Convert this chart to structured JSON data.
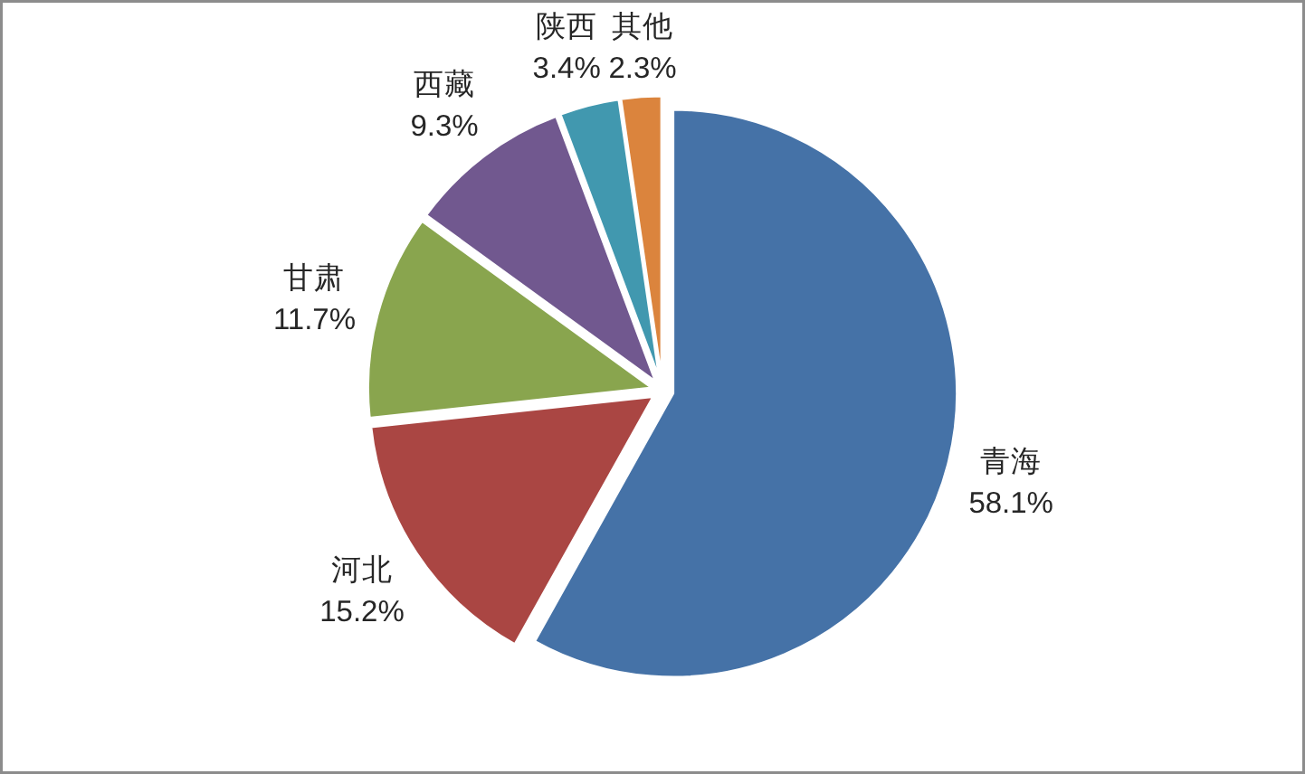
{
  "chart_data": {
    "type": "pie",
    "categories": [
      "青海",
      "河北",
      "甘肃",
      "西藏",
      "陕西",
      "其他"
    ],
    "values": [
      58.1,
      15.2,
      11.7,
      9.3,
      3.4,
      2.3
    ],
    "colors": [
      "#4572a7",
      "#aa4643",
      "#89a54e",
      "#71588f",
      "#4198af",
      "#db843d"
    ],
    "value_labels": [
      "58.1%",
      "15.2%",
      "11.7%",
      "9.3%",
      "3.4%",
      "2.3%"
    ]
  }
}
